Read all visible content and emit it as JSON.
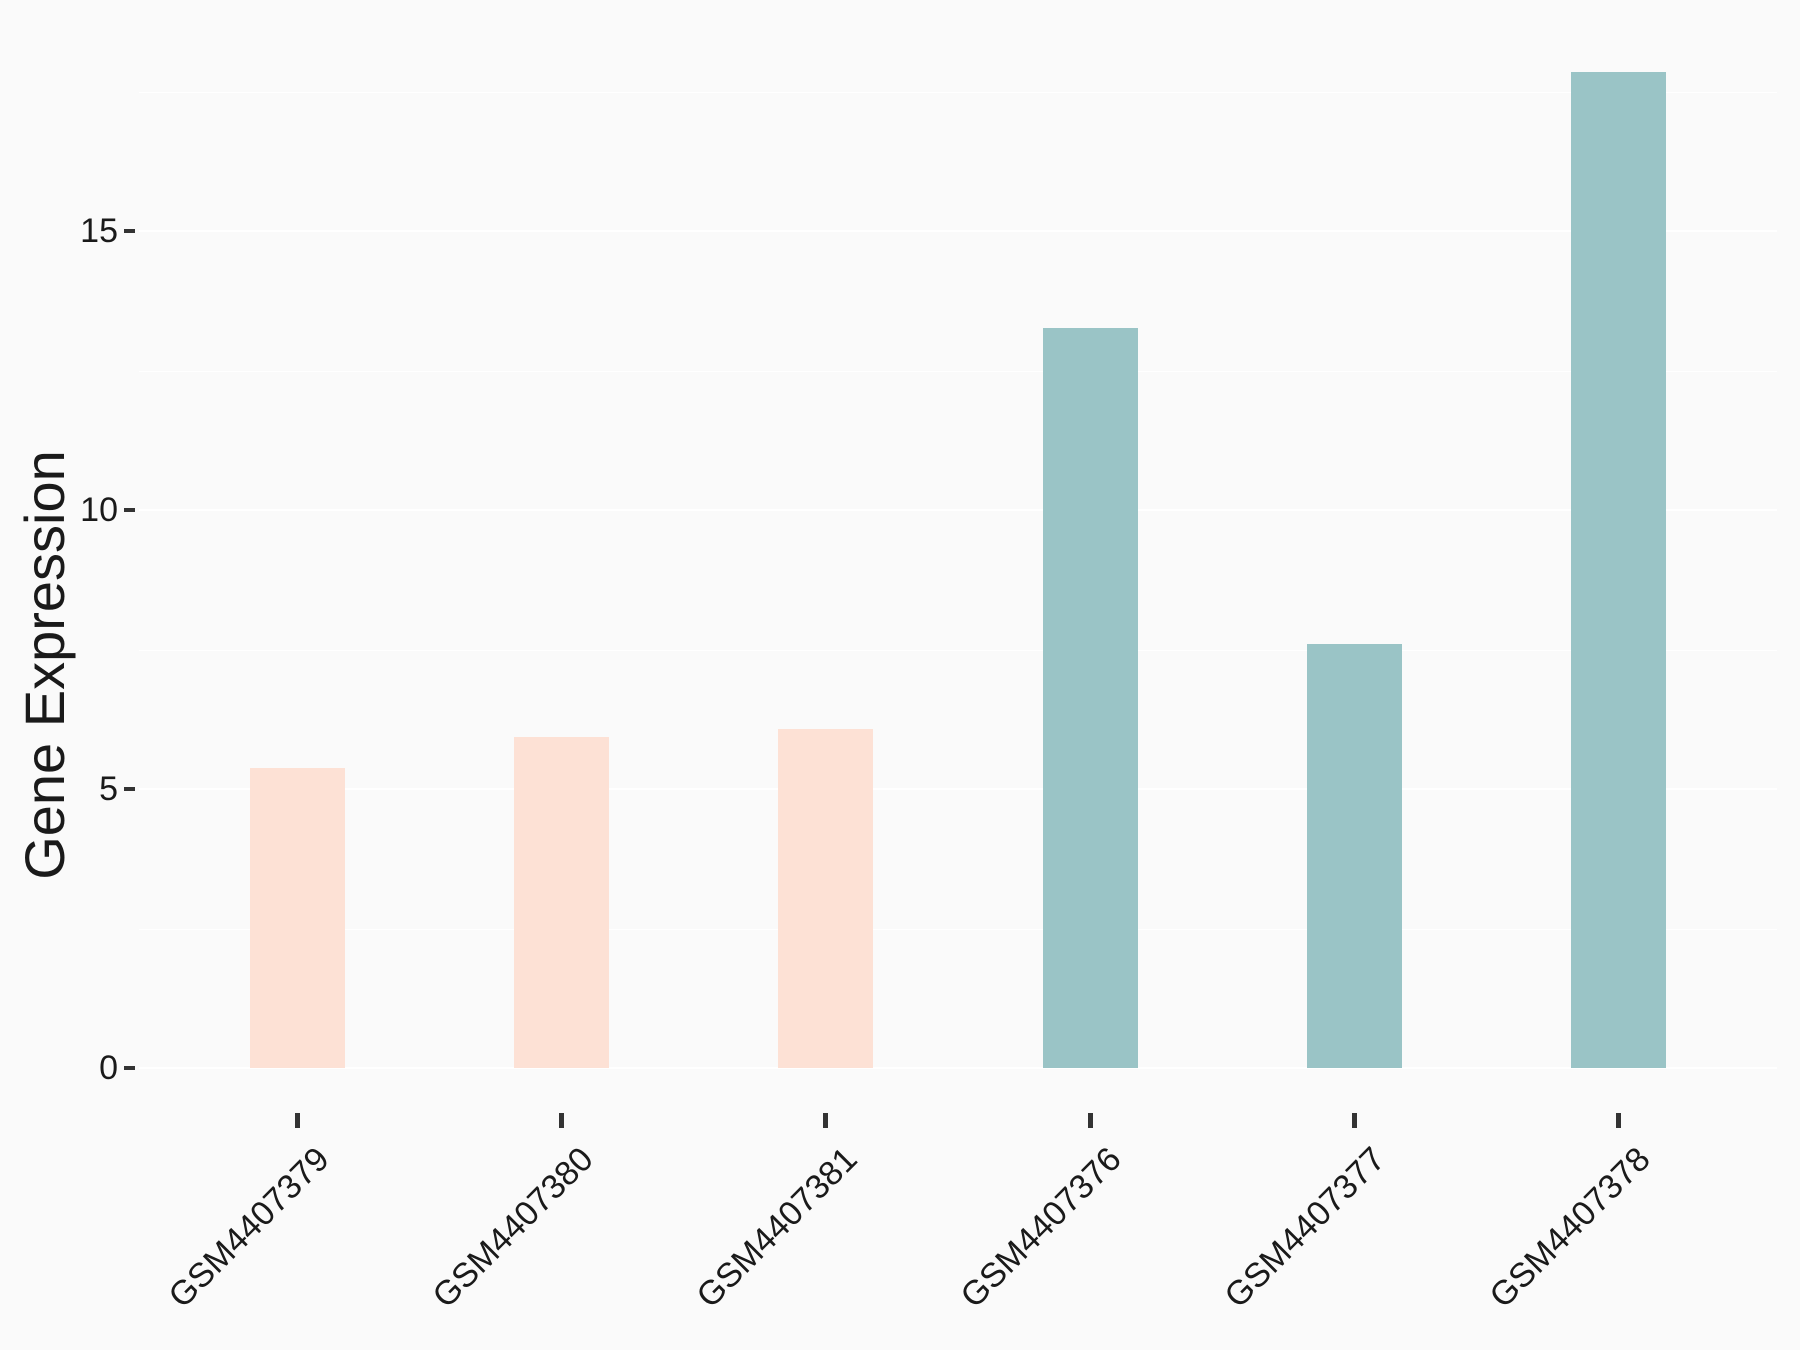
{
  "chart_data": {
    "type": "bar",
    "title": "",
    "xlabel": "",
    "ylabel": "Gene Expression",
    "categories": [
      "GSM4407379",
      "GSM4407380",
      "GSM4407381",
      "GSM4407376",
      "GSM4407377",
      "GSM4407378"
    ],
    "values": [
      5.38,
      5.93,
      6.08,
      13.26,
      7.6,
      17.85
    ],
    "bar_colors": [
      "#FDE1D5",
      "#FDE1D5",
      "#FDE1D5",
      "#9AC4C6",
      "#9AC4C6",
      "#9AC4C6"
    ],
    "group_colors": {
      "salmon": "#FDE1D5",
      "teal": "#9AC4C6"
    },
    "yticks": [
      0,
      5,
      10,
      15
    ],
    "ytick_labels": [
      "0",
      "5",
      "10",
      "15"
    ],
    "minor_gridlines": [
      2.5,
      7.5,
      12.5,
      17.5
    ],
    "ylim": [
      0,
      18.7
    ],
    "grid": true,
    "legend_position": "none",
    "colors": {
      "background": "#FAFAFA",
      "gridline": "#FFFFFF",
      "tick_mark": "#333333",
      "text": "#1A1A1A"
    }
  }
}
